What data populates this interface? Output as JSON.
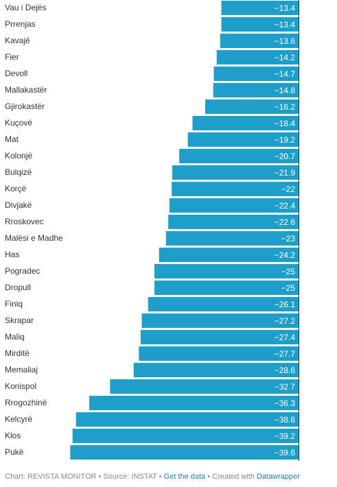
{
  "chart_data": {
    "type": "bar",
    "orientation": "horizontal",
    "categories": [
      "Vau i Dejës",
      "Prrenjas",
      "Kavajë",
      "Fier",
      "Devoll",
      "Mallakastër",
      "Gjirokastër",
      "Kuçovë",
      "Mat",
      "Kolonjë",
      "Bulqizë",
      "Korçë",
      "Divjakë",
      "Rroskovec",
      "Malësi e Madhe",
      "Has",
      "Pogradec",
      "Dropull",
      "Finiq",
      "Skrapar",
      "Maliq",
      "Mirditë",
      "Memaliaj",
      "Konispol",
      "Rrogozhinë",
      "Kelcyrë",
      "Klos",
      "Pukë"
    ],
    "values": [
      -13.4,
      -13.4,
      -13.6,
      -14.2,
      -14.7,
      -14.8,
      -16.2,
      -18.4,
      -19.2,
      -20.7,
      -21.9,
      -22,
      -22.4,
      -22.6,
      -23,
      -24.2,
      -25,
      -25,
      -26.1,
      -27.2,
      -27.4,
      -27.7,
      -28.6,
      -32.7,
      -36.3,
      -38.6,
      -39.2,
      -39.6
    ],
    "value_labels": [
      "−13.4",
      "−13.4",
      "−13.6",
      "−14.2",
      "−14.7",
      "−14.8",
      "−16.2",
      "−18.4",
      "−19.2",
      "−20.7",
      "−21.9",
      "−22",
      "−22.4",
      "−22.6",
      "−23",
      "−24.2",
      "−25",
      "−25",
      "−26.1",
      "−27.2",
      "−27.4",
      "−27.7",
      "−28.6",
      "−32.7",
      "−36.3",
      "−38.6",
      "−39.2",
      "−39.6"
    ],
    "bar_color": "#1d9fc9",
    "axis_line_color": "#333333",
    "label_position": "inside-left-end",
    "xlim": [
      -40,
      0
    ]
  },
  "footer": {
    "chart_by": "Chart: REVISTA MONITOR",
    "sep1": " • ",
    "source": "Source: INSTAT",
    "sep2": " • ",
    "get_data": "Get the data",
    "sep3": " • ",
    "created_with": "Created with ",
    "datawrapper": "Datawrapper"
  }
}
